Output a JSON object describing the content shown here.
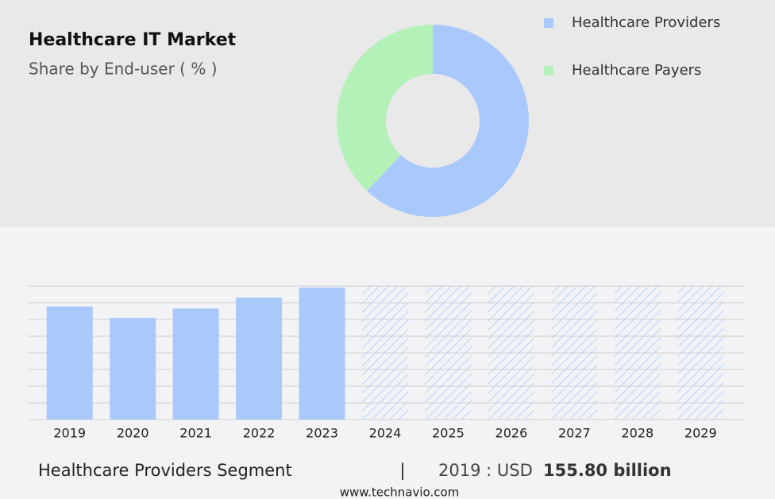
{
  "chart_data": [
    {
      "type": "donut",
      "title": "Healthcare IT Market",
      "subtitle": "Share by End-user ( % )",
      "series": [
        {
          "name": "Healthcare Providers",
          "color": "#a9c9fd",
          "value": 62
        },
        {
          "name": "Healthcare Payers",
          "color": "#b3f1b8",
          "value": 38
        }
      ]
    },
    {
      "type": "bar",
      "color": "#a9c9fd",
      "categories": [
        "2019",
        "2020",
        "2021",
        "2022",
        "2023",
        "2024",
        "2025",
        "2026",
        "2027",
        "2028",
        "2029"
      ],
      "values": [
        155.8,
        140,
        153,
        168,
        182,
        null,
        null,
        null,
        null,
        null,
        null
      ],
      "ylim": [
        0,
        184
      ],
      "yticks": [
        0,
        23,
        46,
        69,
        92,
        115,
        138,
        161,
        184
      ],
      "grid": true
    }
  ],
  "footer": {
    "segment": "Healthcare Providers Segment",
    "separator": "|",
    "year_label": "2019 : USD",
    "value": "155.80 billion",
    "source": "www.technavio.com"
  }
}
